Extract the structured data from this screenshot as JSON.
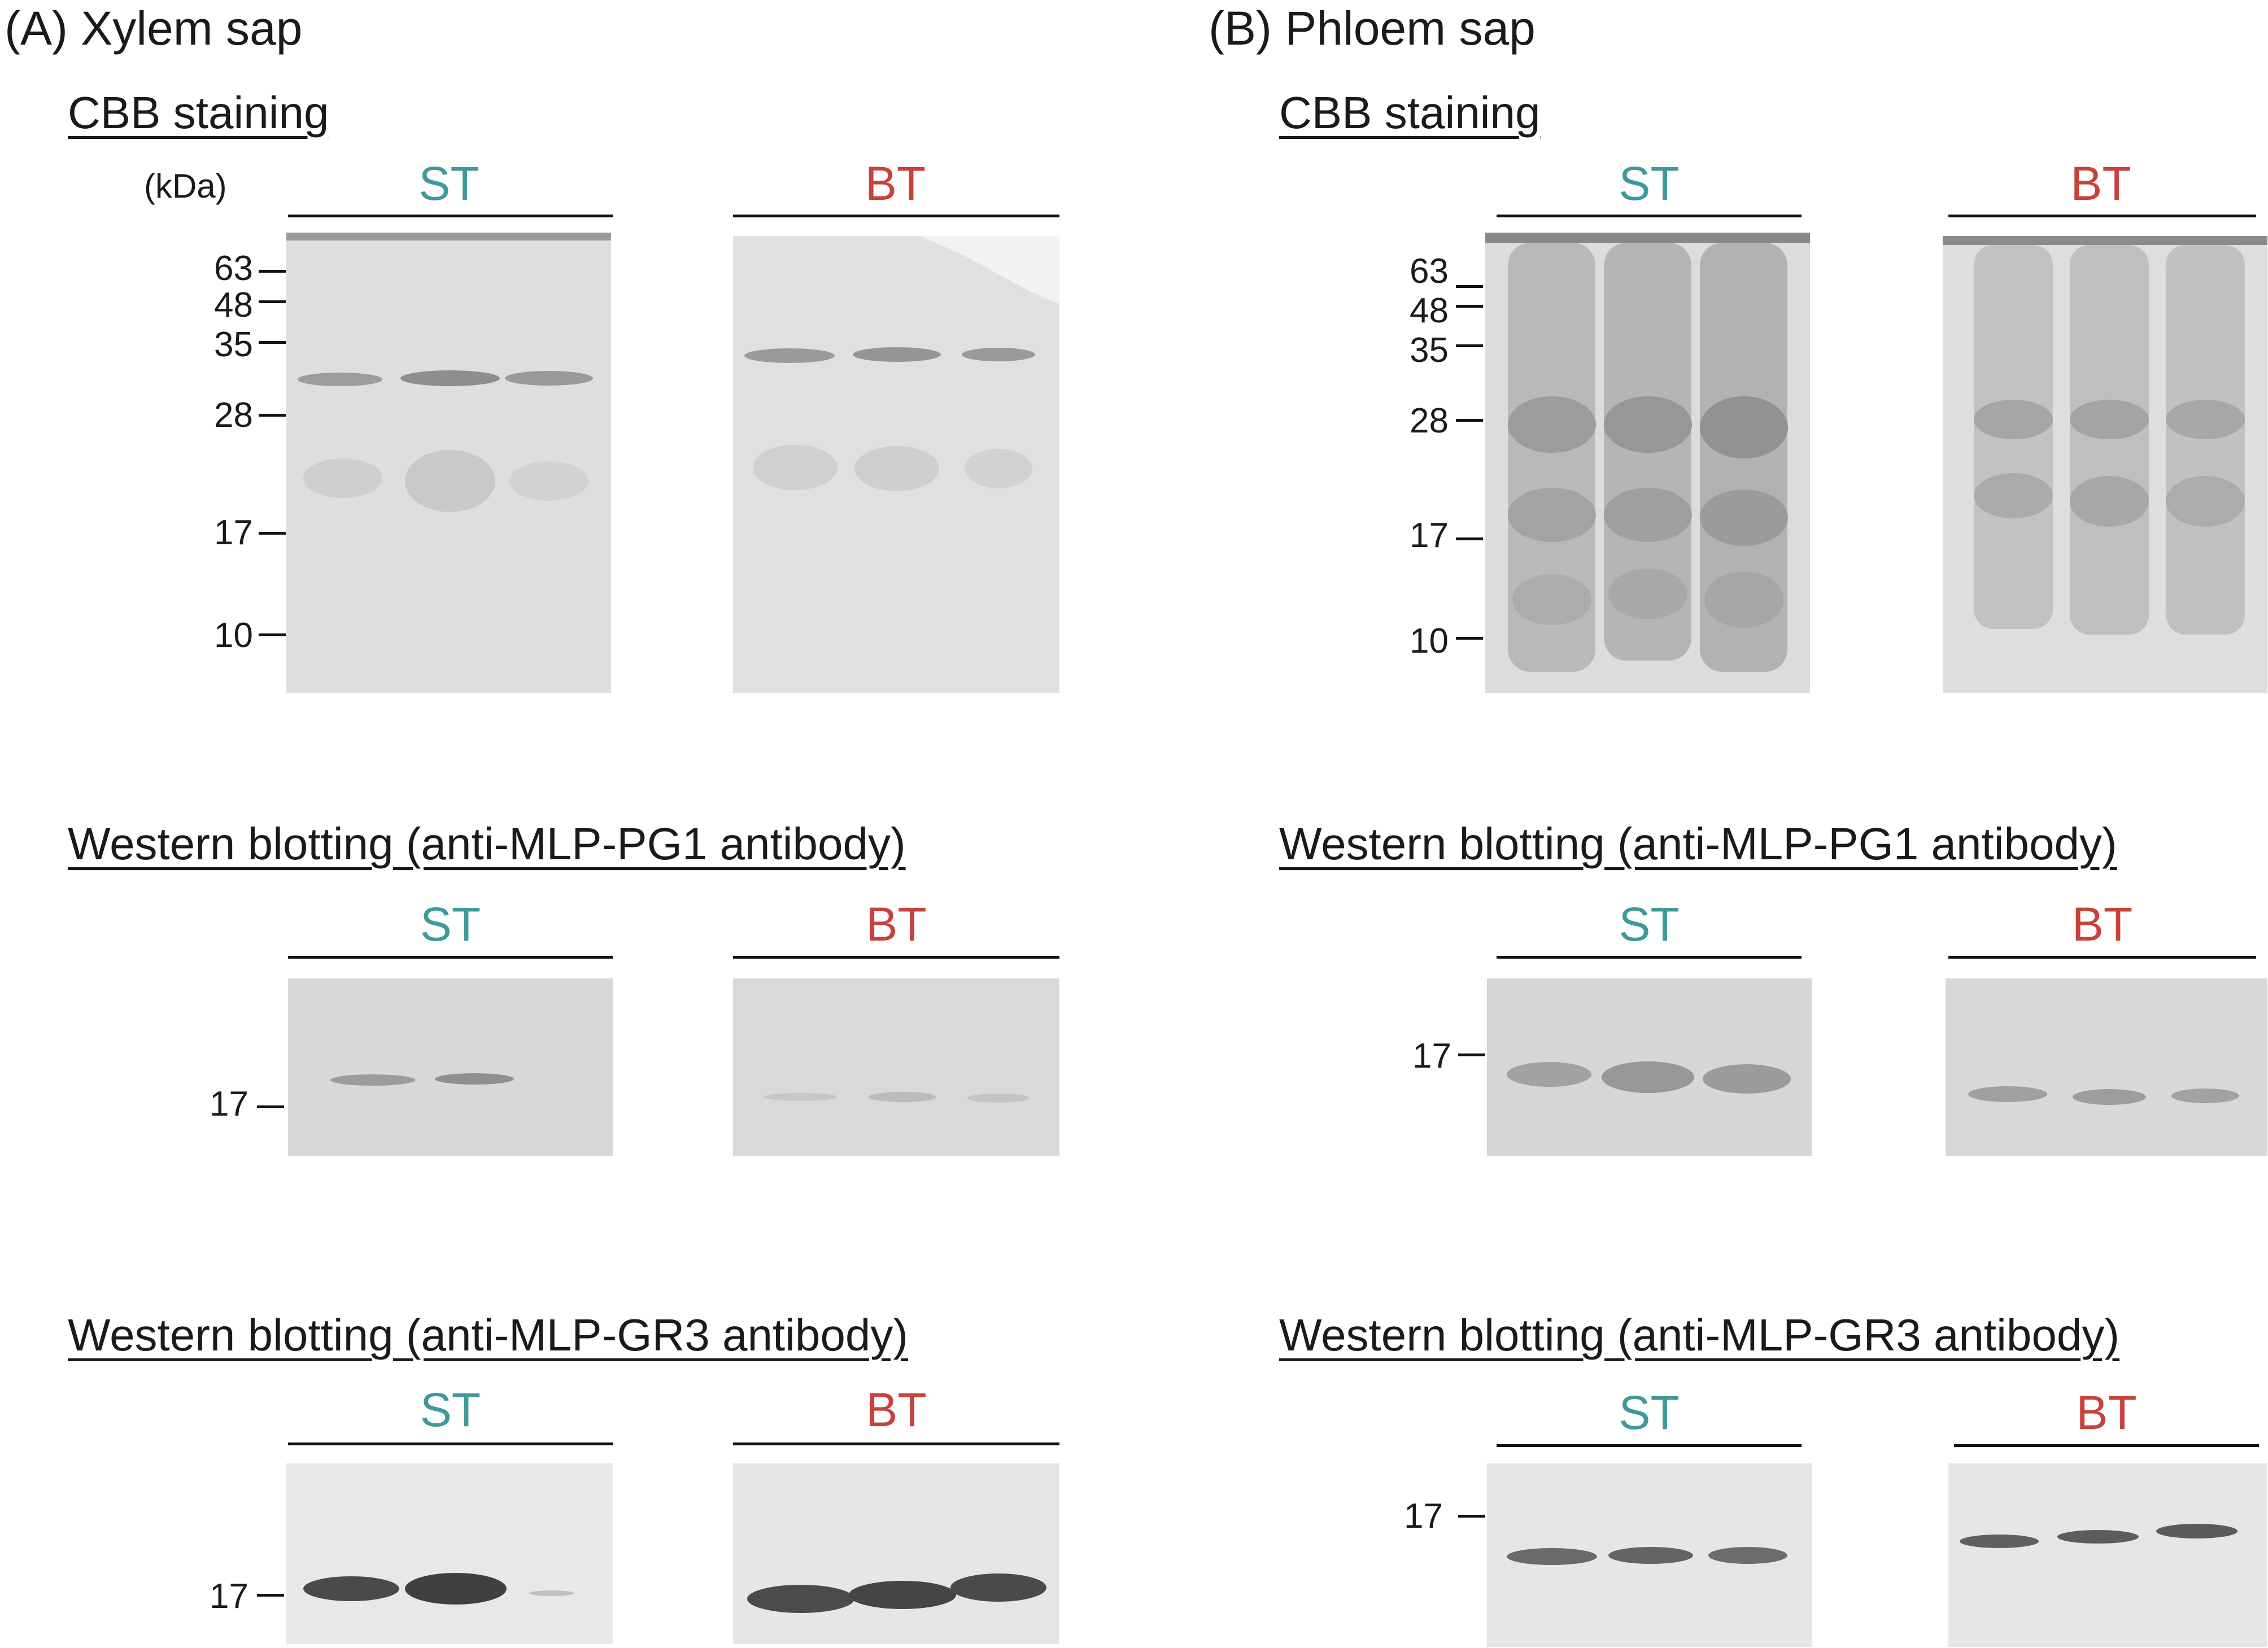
{
  "colors": {
    "st": "#3e9a9a",
    "bt": "#c8413a",
    "text": "#1a1a1a"
  },
  "panels": {
    "a": {
      "title": "(A) Xylem sap",
      "cbb": {
        "title": "CBB staining",
        "unit": "(kDa)",
        "st": "ST",
        "bt": "BT",
        "markers": [
          "63",
          "48",
          "35",
          "28",
          "17",
          "10"
        ]
      },
      "wb1": {
        "title": "Western blotting (anti-MLP-PG1 antibody)",
        "st": "ST",
        "bt": "BT",
        "marker": "17"
      },
      "wb2": {
        "title": "Western blotting (anti-MLP-GR3 antibody)",
        "st": "ST",
        "bt": "BT",
        "marker": "17"
      }
    },
    "b": {
      "title": "(B) Phloem sap",
      "cbb": {
        "title": "CBB staining",
        "st": "ST",
        "bt": "BT",
        "markers": [
          "63",
          "48",
          "35",
          "28",
          "17",
          "10"
        ]
      },
      "wb1": {
        "title": "Western blotting (anti-MLP-PG1 antibody)",
        "st": "ST",
        "bt": "BT",
        "marker": "17"
      },
      "wb2": {
        "title": "Western blotting (anti-MLP-GR3 antibody)",
        "st": "ST",
        "bt": "BT",
        "marker": "17"
      }
    }
  }
}
